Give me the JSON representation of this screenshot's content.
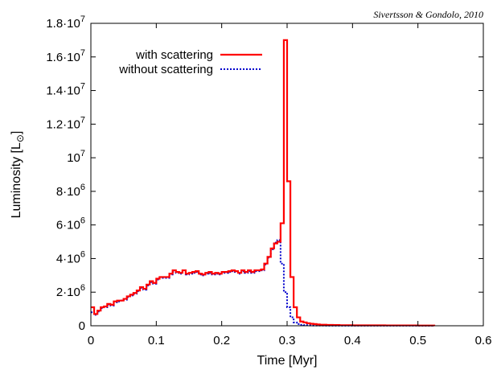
{
  "chart_data": {
    "type": "line",
    "annotation": "Sivertsson & Gondolo, 2010",
    "xlabel": "Time  [Myr]",
    "ylabel_text": "Luminosity  [L",
    "ylabel_sub": "⊙",
    "ylabel_close": "]",
    "xlim": [
      0,
      0.6
    ],
    "ylim": [
      0,
      18000000
    ],
    "grid": false,
    "legend_position": "top-left",
    "x_ticks": [
      {
        "value": 0,
        "label": "0"
      },
      {
        "value": 0.1,
        "label": "0.1"
      },
      {
        "value": 0.2,
        "label": "0.2"
      },
      {
        "value": 0.3,
        "label": "0.3"
      },
      {
        "value": 0.4,
        "label": "0.4"
      },
      {
        "value": 0.5,
        "label": "0.5"
      },
      {
        "value": 0.6,
        "label": "0.6"
      }
    ],
    "y_ticks": [
      {
        "value": 0,
        "mant": "0",
        "exp": ""
      },
      {
        "value": 2000000,
        "mant": "2·10",
        "exp": "6"
      },
      {
        "value": 4000000,
        "mant": "4·10",
        "exp": "6"
      },
      {
        "value": 6000000,
        "mant": "6·10",
        "exp": "6"
      },
      {
        "value": 8000000,
        "mant": "8·10",
        "exp": "6"
      },
      {
        "value": 10000000,
        "mant": "10",
        "exp": "7"
      },
      {
        "value": 12000000,
        "mant": "1.2·10",
        "exp": "7"
      },
      {
        "value": 14000000,
        "mant": "1.4·10",
        "exp": "7"
      },
      {
        "value": 16000000,
        "mant": "1.6·10",
        "exp": "7"
      },
      {
        "value": 18000000,
        "mant": "1.8·10",
        "exp": "7"
      }
    ],
    "series": [
      {
        "name": "with scattering",
        "color": "#ff0000",
        "style": "solid",
        "x": [
          0,
          0.005,
          0.01,
          0.015,
          0.02,
          0.025,
          0.03,
          0.035,
          0.04,
          0.045,
          0.05,
          0.055,
          0.06,
          0.065,
          0.07,
          0.075,
          0.08,
          0.085,
          0.09,
          0.095,
          0.1,
          0.105,
          0.11,
          0.115,
          0.12,
          0.125,
          0.13,
          0.135,
          0.14,
          0.145,
          0.15,
          0.155,
          0.16,
          0.165,
          0.17,
          0.175,
          0.18,
          0.185,
          0.19,
          0.195,
          0.2,
          0.205,
          0.21,
          0.215,
          0.22,
          0.225,
          0.23,
          0.235,
          0.24,
          0.245,
          0.25,
          0.255,
          0.26,
          0.265,
          0.27,
          0.275,
          0.28,
          0.285,
          0.29,
          0.295,
          0.3,
          0.305,
          0.31,
          0.315,
          0.32,
          0.325,
          0.33,
          0.335,
          0.34,
          0.345,
          0.35,
          0.36,
          0.37,
          0.38,
          0.4,
          0.45,
          0.5,
          0.525
        ],
        "y": [
          1100000,
          700000,
          900000,
          1100000,
          1150000,
          1300000,
          1250000,
          1450000,
          1500000,
          1500000,
          1600000,
          1750000,
          1850000,
          1950000,
          2100000,
          2300000,
          2200000,
          2450000,
          2650000,
          2550000,
          2800000,
          2900000,
          2900000,
          2900000,
          3100000,
          3300000,
          3200000,
          3150000,
          3300000,
          3100000,
          3150000,
          3200000,
          3250000,
          3100000,
          3050000,
          3150000,
          3200000,
          3100000,
          3150000,
          3100000,
          3200000,
          3200000,
          3250000,
          3300000,
          3250000,
          3150000,
          3300000,
          3200000,
          3300000,
          3200000,
          3300000,
          3300000,
          3350000,
          3700000,
          4100000,
          4600000,
          4900000,
          5000000,
          6100000,
          17000000,
          8600000,
          2900000,
          1100000,
          500000,
          250000,
          200000,
          150000,
          120000,
          100000,
          80000,
          60000,
          50000,
          40000,
          30000,
          25000,
          20000,
          15000,
          0
        ]
      },
      {
        "name": "without scattering",
        "color": "#0000cc",
        "style": "dotted",
        "x": [
          0,
          0.005,
          0.01,
          0.015,
          0.02,
          0.025,
          0.03,
          0.035,
          0.04,
          0.045,
          0.05,
          0.055,
          0.06,
          0.065,
          0.07,
          0.075,
          0.08,
          0.085,
          0.09,
          0.095,
          0.1,
          0.105,
          0.11,
          0.115,
          0.12,
          0.125,
          0.13,
          0.135,
          0.14,
          0.145,
          0.15,
          0.155,
          0.16,
          0.165,
          0.17,
          0.175,
          0.18,
          0.185,
          0.19,
          0.195,
          0.2,
          0.205,
          0.21,
          0.215,
          0.22,
          0.225,
          0.23,
          0.235,
          0.24,
          0.245,
          0.25,
          0.255,
          0.26,
          0.265,
          0.27,
          0.275,
          0.28,
          0.285,
          0.29,
          0.295,
          0.3,
          0.305,
          0.31,
          0.315,
          0.32,
          0.325,
          0.33,
          0.335,
          0.34,
          0.35,
          0.36,
          0.38,
          0.4,
          0.45,
          0.5,
          0.525
        ],
        "y": [
          800000,
          650000,
          850000,
          1050000,
          1100000,
          1250000,
          1200000,
          1400000,
          1450000,
          1500000,
          1550000,
          1700000,
          1800000,
          1900000,
          2050000,
          2250000,
          2150000,
          2400000,
          2600000,
          2500000,
          2750000,
          2850000,
          2850000,
          2850000,
          3050000,
          3200000,
          3150000,
          3100000,
          3200000,
          3050000,
          3100000,
          3150000,
          3200000,
          3050000,
          3000000,
          3100000,
          3150000,
          3050000,
          3100000,
          3050000,
          3150000,
          3150000,
          3200000,
          3250000,
          3200000,
          3100000,
          3250000,
          3150000,
          3250000,
          3150000,
          3250000,
          3250000,
          3300000,
          3650000,
          4050000,
          4550000,
          4950000,
          5100000,
          3700000,
          2000000,
          1100000,
          500000,
          200000,
          100000,
          60000,
          40000,
          30000,
          20000,
          15000,
          10000,
          8000,
          6000,
          5000,
          4000,
          3000,
          0
        ]
      }
    ]
  }
}
